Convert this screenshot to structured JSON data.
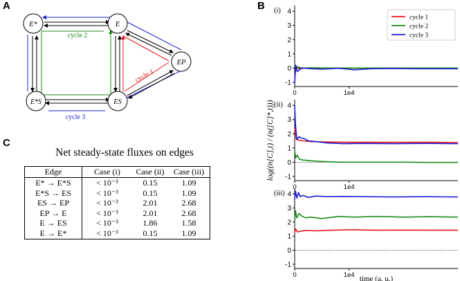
{
  "panel_labels": {
    "a": "A",
    "b": "B",
    "c": "C"
  },
  "diagram": {
    "nodes": {
      "estar": "E*",
      "e": "E",
      "ep": "EP",
      "es": "ES",
      "estars": "E*S"
    },
    "cycle_labels": {
      "cycle1": "cycle 1",
      "cycle2": "cycle 2",
      "cycle3": "cycle 3"
    },
    "colors": {
      "cycle1": "#e8141b",
      "cycle2": "#1a8a1a",
      "cycle3": "#1c1cd6"
    }
  },
  "table": {
    "title": "Net steady-state fluxes on edges",
    "headers": [
      "Edge",
      "Case (i)",
      "Case (ii)",
      "Case (iii)"
    ],
    "rows": [
      [
        "E* → E*S",
        "< 10⁻³",
        "0.15",
        "1.09"
      ],
      [
        "E*S → ES",
        "< 10⁻³",
        "0.15",
        "1.09"
      ],
      [
        "ES → EP",
        "< 10⁻³",
        "2.01",
        "2.68"
      ],
      [
        "EP → E",
        "< 10⁻³",
        "2.01",
        "2.68"
      ],
      [
        "E → ES",
        "< 10⁻³",
        "1.86",
        "1.58"
      ],
      [
        "E → E*",
        "< 10⁻³",
        "0.15",
        "1.09"
      ]
    ]
  },
  "chart_data": [
    {
      "type": "line",
      "panel": "(i)",
      "yticks": [
        -1,
        0,
        1,
        2,
        3,
        4
      ],
      "ylim": [
        -1.3,
        4.4
      ],
      "xlim": [
        0,
        30000
      ],
      "xtick_labels": [
        "0",
        "1e4"
      ],
      "legend": {
        "placement": "top-right",
        "entries": [
          "cycle 1",
          "cycle 2",
          "cycle 3"
        ]
      },
      "series": [
        {
          "name": "cycle 1",
          "color": "#e8141b",
          "x": [
            0,
            300,
            800,
            1500,
            3000,
            6000,
            10000,
            15000,
            20000,
            25000,
            30000
          ],
          "y": [
            -0.6,
            0.1,
            -0.05,
            0.0,
            -0.02,
            0.0,
            0.0,
            0.0,
            0.0,
            0.0,
            0.0
          ]
        },
        {
          "name": "cycle 2",
          "color": "#1a8a1a",
          "x": [
            0,
            300,
            800,
            1500,
            3000,
            6000,
            10000,
            15000,
            20000,
            25000,
            30000
          ],
          "y": [
            0.2,
            0.1,
            0.05,
            0.0,
            0.02,
            0.0,
            0.0,
            0.0,
            0.0,
            0.0,
            0.0
          ]
        },
        {
          "name": "cycle 3",
          "color": "#1c1cd6",
          "x": [
            0,
            200,
            500,
            900,
            1500,
            3000,
            5000,
            8000,
            11000,
            14000,
            18000,
            22000,
            26000,
            30000
          ],
          "y": [
            -1.1,
            0.2,
            -0.25,
            -0.1,
            0.0,
            -0.05,
            -0.08,
            -0.02,
            -0.12,
            -0.05,
            -0.03,
            -0.05,
            -0.05,
            -0.05
          ]
        }
      ]
    },
    {
      "type": "line",
      "panel": "(ii)",
      "yticks": [
        -1,
        0,
        1,
        2,
        3,
        4
      ],
      "ylim": [
        -1.3,
        4.4
      ],
      "xlim": [
        0,
        30000
      ],
      "xtick_labels": [
        "0",
        "1e4"
      ],
      "ylabel": "log((n[C],t) / (n([C]*,t)))",
      "series": [
        {
          "name": "cycle 1",
          "color": "#e8141b",
          "x": [
            0,
            300,
            800,
            1500,
            3000,
            6000,
            10000,
            15000,
            20000,
            25000,
            30000
          ],
          "y": [
            2.4,
            1.6,
            1.55,
            1.5,
            1.45,
            1.42,
            1.4,
            1.4,
            1.4,
            1.4,
            1.38
          ]
        },
        {
          "name": "cycle 2",
          "color": "#1a8a1a",
          "x": [
            0,
            200,
            500,
            900,
            1500,
            3000,
            5000,
            8000,
            12000,
            16000,
            20000,
            25000,
            30000
          ],
          "y": [
            0.8,
            0.3,
            0.5,
            0.2,
            0.15,
            0.1,
            0.05,
            0.0,
            0.0,
            0.0,
            0.0,
            -0.02,
            -0.02
          ]
        },
        {
          "name": "cycle 3",
          "color": "#1c1cd6",
          "x": [
            0,
            150,
            400,
            800,
            1200,
            1800,
            2500,
            4000,
            6000,
            9000,
            13000,
            18000,
            24000,
            30000
          ],
          "y": [
            4.0,
            2.6,
            1.6,
            1.8,
            1.7,
            1.65,
            1.5,
            1.45,
            1.35,
            1.3,
            1.32,
            1.3,
            1.32,
            1.3
          ]
        }
      ]
    },
    {
      "type": "line",
      "panel": "(iii)",
      "yticks": [
        -1,
        0,
        1,
        2,
        3,
        4
      ],
      "ylim": [
        -1.3,
        4.4
      ],
      "xlim": [
        0,
        30000
      ],
      "xtick_labels": [
        "0",
        "1e4"
      ],
      "xlabel": "time (a. u.)",
      "series": [
        {
          "name": "cycle 1",
          "color": "#e8141b",
          "x": [
            0,
            200,
            500,
            1000,
            2000,
            4000,
            7000,
            10000,
            15000,
            20000,
            25000,
            30000
          ],
          "y": [
            1.3,
            1.5,
            1.3,
            1.35,
            1.4,
            1.38,
            1.42,
            1.45,
            1.42,
            1.43,
            1.42,
            1.42
          ]
        },
        {
          "name": "cycle 2",
          "color": "#1a8a1a",
          "x": [
            0,
            150,
            400,
            800,
            1200,
            2000,
            3000,
            5000,
            8000,
            11000,
            15000,
            20000,
            25000,
            30000
          ],
          "y": [
            2.0,
            2.8,
            2.3,
            2.6,
            2.45,
            2.3,
            2.35,
            2.25,
            2.4,
            2.35,
            2.4,
            2.35,
            2.38,
            2.35
          ]
        },
        {
          "name": "cycle 3",
          "color": "#1c1cd6",
          "x": [
            0,
            150,
            400,
            700,
            1000,
            1500,
            2500,
            4000,
            6000,
            9000,
            13000,
            18000,
            24000,
            30000
          ],
          "y": [
            3.6,
            4.2,
            3.7,
            4.1,
            3.8,
            3.9,
            3.75,
            3.85,
            3.8,
            3.82,
            3.8,
            3.78,
            3.8,
            3.78
          ]
        }
      ]
    }
  ]
}
